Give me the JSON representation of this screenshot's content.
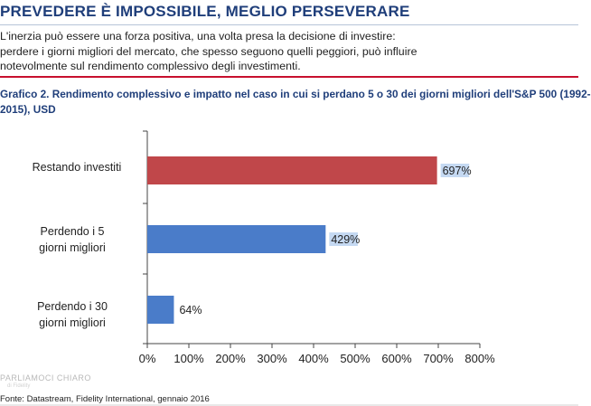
{
  "header": {
    "title": "PREVEDERE È IMPOSSIBILE, MEGLIO PERSEVERARE"
  },
  "intro": {
    "lines": [
      "L'inerzia può essere una forza positiva, una volta presa la decisione di investire:",
      "perdere i giorni migliori del mercato, che spesso seguono quelli peggiori, può influire",
      "notevolmente sul rendimento complessivo degli investimenti."
    ]
  },
  "chart_title": {
    "lines": [
      "Grafico 2. Rendimento complessivo e impatto nel caso in cui si perdano 5 o 30 dei giorni migliori dell'S&P 500 (1992-",
      "2015), USD"
    ]
  },
  "chart_data": {
    "type": "bar",
    "orientation": "horizontal",
    "title": "Grafico 2. Rendimento complessivo e impatto nel caso in cui si perdano 5 o 30 dei giorni migliori dell'S&P 500 (1992-2015), USD",
    "categories": [
      [
        "Restando investiti"
      ],
      [
        "Perdendo i 5",
        "giorni migliori"
      ],
      [
        "Perdendo i 30",
        "giorni migliori"
      ]
    ],
    "values": [
      697,
      429,
      64
    ],
    "data_labels": [
      "697%",
      "429%",
      "64%"
    ],
    "bar_colors": [
      "#c0474a",
      "#4a7cc9",
      "#4a7cc9"
    ],
    "label_highlights": [
      "#c5d9f2",
      "#c5d9f2",
      ""
    ],
    "xlim": [
      0,
      800
    ],
    "xticks": [
      0,
      100,
      200,
      300,
      400,
      500,
      600,
      700,
      800
    ],
    "xtick_labels": [
      "0%",
      "100%",
      "200%",
      "300%",
      "400%",
      "500%",
      "600%",
      "700%",
      "800%"
    ],
    "xlabel": "",
    "ylabel": "",
    "grid": false,
    "legend": "none"
  },
  "footer": {
    "watermark": "PARLIAMOCI CHIARO",
    "watermark_sub": "di Fidelity",
    "source": "Fonte: Datastream, Fidelity International, gennaio 2016"
  },
  "colors": {
    "heading": "#1f3e7a",
    "accent_rule": "#c8102e",
    "axis": "#444444"
  }
}
